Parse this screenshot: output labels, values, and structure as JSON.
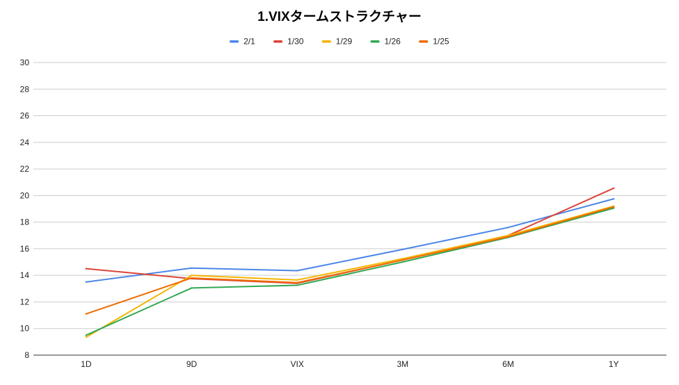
{
  "chart_data": {
    "type": "line",
    "title": "1.VIXタームストラクチャー",
    "xlabel": "",
    "ylabel": "",
    "categories": [
      "1D",
      "9D",
      "VIX",
      "3M",
      "6M",
      "1Y"
    ],
    "ylim": [
      8,
      30
    ],
    "yticks": [
      8,
      10,
      12,
      14,
      16,
      18,
      20,
      22,
      24,
      26,
      28,
      30
    ],
    "grid": true,
    "legend_position": "top",
    "series": [
      {
        "name": "2/1",
        "color": "#4a86e8",
        "values": [
          13.5,
          14.55,
          14.35,
          15.95,
          17.6,
          19.75
        ]
      },
      {
        "name": "1/30",
        "color": "#db4437",
        "values": [
          14.5,
          13.75,
          13.4,
          15.15,
          17.0,
          20.55
        ]
      },
      {
        "name": "1/29",
        "color": "#f4b400",
        "values": [
          9.35,
          14.0,
          13.65,
          15.25,
          17.0,
          19.2
        ]
      },
      {
        "name": "1/26",
        "color": "#34a853",
        "values": [
          9.5,
          13.05,
          13.25,
          15.0,
          16.85,
          19.05
        ]
      },
      {
        "name": "1/25",
        "color": "#ef6c00",
        "values": [
          11.1,
          13.8,
          13.45,
          15.15,
          16.9,
          19.15
        ]
      }
    ]
  }
}
